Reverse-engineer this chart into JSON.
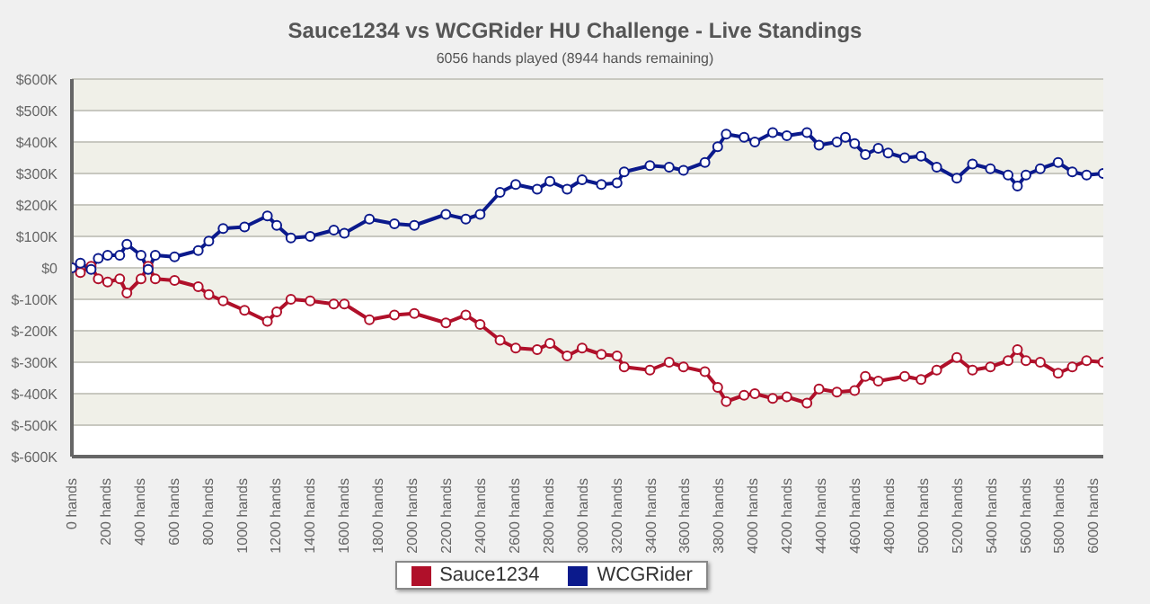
{
  "chart_data": {
    "type": "line",
    "title": "Sauce1234 vs WCGRider HU Challenge - Live Standings",
    "subtitle": "6056 hands played (8944 hands remaining)",
    "xlim": [
      0,
      6056
    ],
    "xticks": [
      {
        "value": 0,
        "label": "0 hands"
      },
      {
        "value": 200,
        "label": "200 hands"
      },
      {
        "value": 400,
        "label": "400 hands"
      },
      {
        "value": 600,
        "label": "600 hands"
      },
      {
        "value": 800,
        "label": "800 hands"
      },
      {
        "value": 1000,
        "label": "1000 hands"
      },
      {
        "value": 1200,
        "label": "1200 hands"
      },
      {
        "value": 1400,
        "label": "1400 hands"
      },
      {
        "value": 1600,
        "label": "1600 hands"
      },
      {
        "value": 1800,
        "label": "1800 hands"
      },
      {
        "value": 2000,
        "label": "2000 hands"
      },
      {
        "value": 2200,
        "label": "2200 hands"
      },
      {
        "value": 2400,
        "label": "2400 hands"
      },
      {
        "value": 2600,
        "label": "2600 hands"
      },
      {
        "value": 2800,
        "label": "2800 hands"
      },
      {
        "value": 3000,
        "label": "3000 hands"
      },
      {
        "value": 3200,
        "label": "3200 hands"
      },
      {
        "value": 3400,
        "label": "3400 hands"
      },
      {
        "value": 3600,
        "label": "3600 hands"
      },
      {
        "value": 3800,
        "label": "3800 hands"
      },
      {
        "value": 4000,
        "label": "4000 hands"
      },
      {
        "value": 4200,
        "label": "4200 hands"
      },
      {
        "value": 4400,
        "label": "4400 hands"
      },
      {
        "value": 4600,
        "label": "4600 hands"
      },
      {
        "value": 4800,
        "label": "4800 hands"
      },
      {
        "value": 5000,
        "label": "5000 hands"
      },
      {
        "value": 5200,
        "label": "5200 hands"
      },
      {
        "value": 5400,
        "label": "5400 hands"
      },
      {
        "value": 5600,
        "label": "5600 hands"
      },
      {
        "value": 5800,
        "label": "5800 hands"
      },
      {
        "value": 6000,
        "label": "6000 hands"
      }
    ],
    "ylim": [
      -600000,
      600000
    ],
    "yticks": [
      {
        "value": -600000,
        "label": "$-600K"
      },
      {
        "value": -500000,
        "label": "$-500K"
      },
      {
        "value": -400000,
        "label": "$-400K"
      },
      {
        "value": -300000,
        "label": "$-300K"
      },
      {
        "value": -200000,
        "label": "$-200K"
      },
      {
        "value": -100000,
        "label": "$-100K"
      },
      {
        "value": 0,
        "label": "$0"
      },
      {
        "value": 100000,
        "label": "$100K"
      },
      {
        "value": 200000,
        "label": "$200K"
      },
      {
        "value": 300000,
        "label": "$300K"
      },
      {
        "value": 400000,
        "label": "$400K"
      },
      {
        "value": 500000,
        "label": "$500K"
      },
      {
        "value": 600000,
        "label": "$600K"
      }
    ],
    "grid": "y",
    "legend": "bottom",
    "marker": "circle",
    "line_style": "solid",
    "series": [
      {
        "name": "Sauce1234",
        "color": "#b0102a",
        "x": [
          0,
          50,
          113,
          155,
          210,
          281,
          323,
          406,
          448,
          490,
          603,
          742,
          804,
          888,
          1014,
          1148,
          1203,
          1286,
          1399,
          1538,
          1600,
          1747,
          1894,
          2011,
          2196,
          2313,
          2397,
          2514,
          2606,
          2732,
          2807,
          2908,
          2996,
          3109,
          3201,
          3243,
          3394,
          3507,
          3591,
          3717,
          3792,
          3842,
          3947,
          4010,
          4115,
          4198,
          4316,
          4387,
          4492,
          4596,
          4659,
          4735,
          4890,
          4986,
          5078,
          5196,
          5288,
          5393,
          5497,
          5552,
          5602,
          5686,
          5791,
          5874,
          5958,
          6055
        ],
        "values": [
          0,
          -15000,
          5000,
          -35000,
          -45000,
          -35000,
          -80000,
          -35000,
          5000,
          -35000,
          -40000,
          -60000,
          -85000,
          -105000,
          -135000,
          -170000,
          -140000,
          -100000,
          -105000,
          -115000,
          -115000,
          -165000,
          -150000,
          -145000,
          -175000,
          -150000,
          -180000,
          -230000,
          -255000,
          -260000,
          -240000,
          -280000,
          -255000,
          -275000,
          -280000,
          -315000,
          -325000,
          -300000,
          -315000,
          -330000,
          -380000,
          -425000,
          -405000,
          -400000,
          -415000,
          -410000,
          -430000,
          -385000,
          -395000,
          -390000,
          -345000,
          -360000,
          -345000,
          -355000,
          -325000,
          -285000,
          -325000,
          -315000,
          -295000,
          -260000,
          -295000,
          -300000,
          -335000,
          -315000,
          -295000,
          -300000
        ]
      },
      {
        "name": "WCGRider",
        "color": "#0b1a8c",
        "x": [
          0,
          50,
          113,
          155,
          210,
          281,
          323,
          406,
          448,
          490,
          603,
          742,
          804,
          888,
          1014,
          1148,
          1203,
          1286,
          1399,
          1538,
          1600,
          1747,
          1894,
          2011,
          2196,
          2313,
          2397,
          2514,
          2606,
          2732,
          2807,
          2908,
          2996,
          3109,
          3201,
          3243,
          3394,
          3507,
          3591,
          3717,
          3792,
          3842,
          3947,
          4010,
          4115,
          4198,
          4316,
          4387,
          4492,
          4542,
          4596,
          4659,
          4735,
          4793,
          4890,
          4986,
          5078,
          5196,
          5288,
          5393,
          5497,
          5552,
          5602,
          5686,
          5791,
          5874,
          5958,
          6055
        ],
        "values": [
          0,
          15000,
          -5000,
          30000,
          40000,
          40000,
          75000,
          40000,
          -5000,
          40000,
          35000,
          55000,
          85000,
          125000,
          130000,
          165000,
          135000,
          95000,
          100000,
          120000,
          110000,
          155000,
          140000,
          135000,
          170000,
          155000,
          170000,
          240000,
          265000,
          250000,
          275000,
          250000,
          280000,
          265000,
          270000,
          305000,
          325000,
          320000,
          310000,
          335000,
          385000,
          425000,
          415000,
          400000,
          430000,
          420000,
          430000,
          390000,
          400000,
          415000,
          395000,
          360000,
          380000,
          365000,
          350000,
          355000,
          320000,
          285000,
          330000,
          315000,
          295000,
          260000,
          295000,
          315000,
          335000,
          305000,
          295000,
          300000
        ]
      }
    ]
  }
}
